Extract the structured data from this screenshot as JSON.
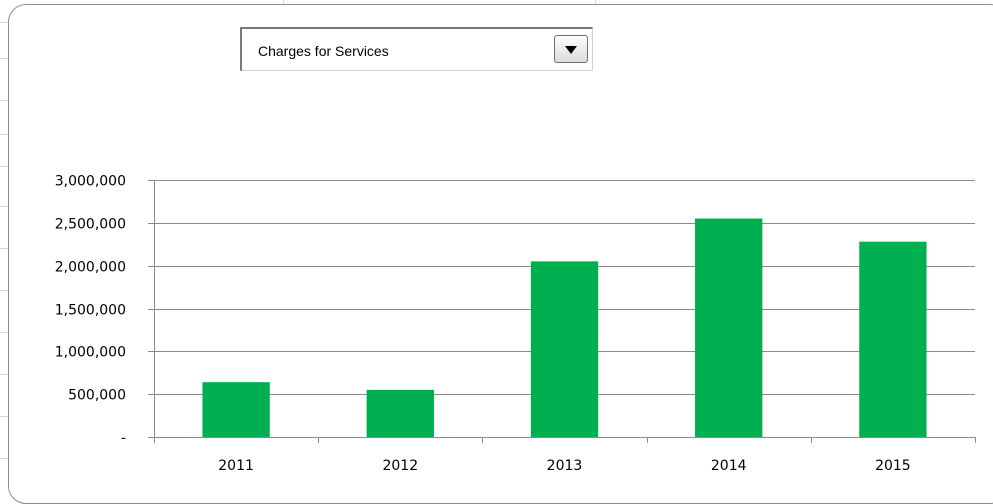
{
  "dropdown": {
    "selected": "Charges for Services",
    "icon": "chevron-down-icon"
  },
  "chart_data": {
    "type": "bar",
    "categories": [
      "2011",
      "2012",
      "2013",
      "2014",
      "2015"
    ],
    "values": [
      640000,
      550000,
      2050000,
      2550000,
      2280000
    ],
    "ylim": [
      0,
      3000000
    ],
    "yticks": [
      0,
      500000,
      1000000,
      1500000,
      2000000,
      2500000,
      3000000
    ],
    "ytick_labels": [
      "-",
      "500,000",
      "1,000,000",
      "1,500,000",
      "2,000,000",
      "2,500,000",
      "3,000,000"
    ],
    "grid": true,
    "legend": "none",
    "bar_color": "#00b050",
    "title": "",
    "xlabel": "",
    "ylabel": ""
  }
}
